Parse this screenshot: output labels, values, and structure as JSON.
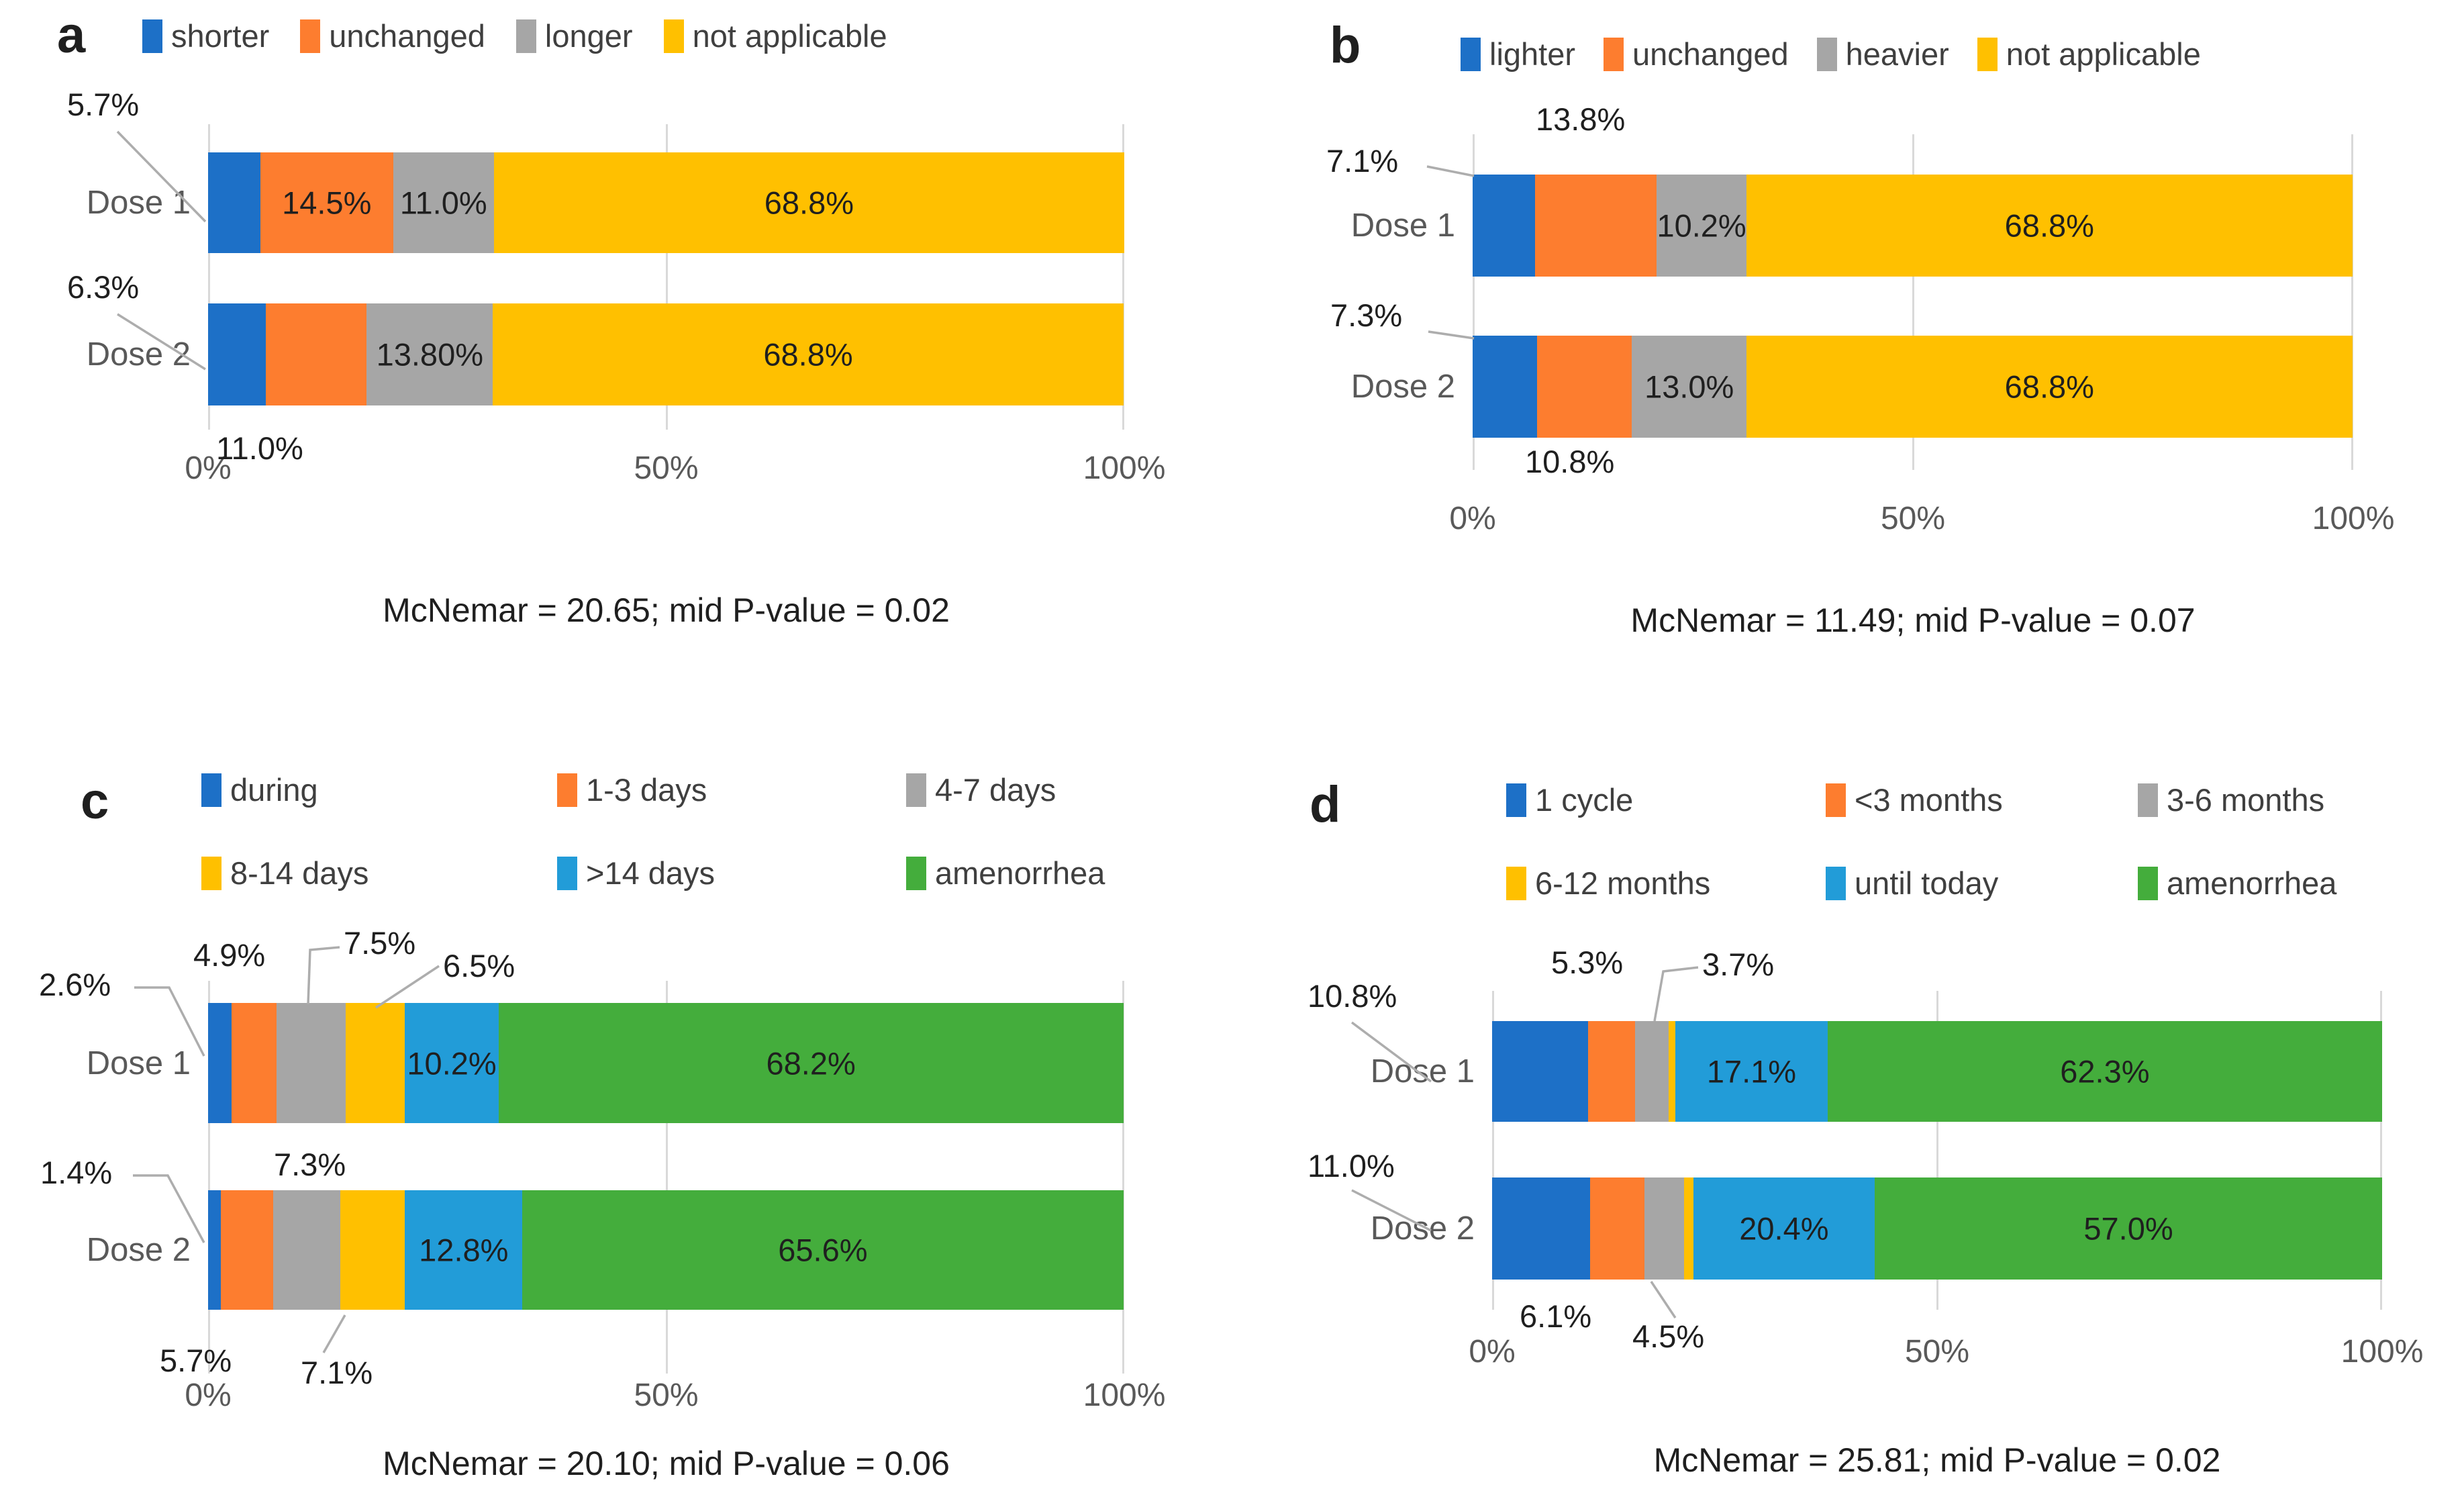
{
  "colors": {
    "blue": "#1d70c7",
    "orange": "#fd7d2f",
    "gray": "#a6a6a6",
    "yellow": "#ffc000",
    "lightblue": "#229cd8",
    "green": "#44ad3c",
    "gridline": "#d9d9d9",
    "leader_line": "#adadad",
    "axis_text": "#595959"
  },
  "figure": {
    "panels": {
      "a": {
        "letter": "a",
        "legend": [
          "shorter",
          "unchanged",
          "longer",
          "not applicable"
        ],
        "rows": [
          {
            "label": "Dose 1",
            "values": [
              5.7,
              14.5,
              11.0,
              68.8
            ],
            "seg_labels": [
              "",
              "14.5%",
              "11.0%",
              "68.8%"
            ]
          },
          {
            "label": "Dose 2",
            "values": [
              6.3,
              11.0,
              13.8,
              68.8
            ],
            "seg_labels": [
              "",
              "",
              "13.80%",
              "68.8%"
            ]
          }
        ],
        "callouts": [
          "5.7%",
          "6.3%",
          "11.0%"
        ],
        "axis_ticks": [
          "0%",
          "50%",
          "100%"
        ],
        "caption": "McNemar = 20.65; mid P-value = 0.02"
      },
      "b": {
        "letter": "b",
        "legend": [
          "lighter",
          "unchanged",
          "heavier",
          "not applicable"
        ],
        "rows": [
          {
            "label": "Dose 1",
            "values": [
              7.1,
              13.8,
              10.2,
              68.8
            ],
            "seg_labels": [
              "",
              "",
              "10.2%",
              "68.8%"
            ]
          },
          {
            "label": "Dose 2",
            "values": [
              7.3,
              10.8,
              13.0,
              68.8
            ],
            "seg_labels": [
              "",
              "",
              "13.0%",
              "68.8%"
            ]
          }
        ],
        "callouts": [
          "13.8%",
          "7.1%",
          "7.3%",
          "10.8%"
        ],
        "axis_ticks": [
          "0%",
          "50%",
          "100%"
        ],
        "caption": "McNemar = 11.49; mid P-value = 0.07"
      },
      "c": {
        "letter": "c",
        "legend": [
          "during",
          "1-3 days",
          "4-7 days",
          "8-14 days",
          ">14 days",
          "amenorrhea"
        ],
        "rows": [
          {
            "label": "Dose 1",
            "values": [
              2.6,
              4.9,
              7.5,
              6.5,
              10.2,
              68.2
            ],
            "seg_labels": [
              "",
              "",
              "",
              "",
              "10.2%",
              "68.2%"
            ]
          },
          {
            "label": "Dose 2",
            "values": [
              1.4,
              5.7,
              7.3,
              7.1,
              12.8,
              65.6
            ],
            "seg_labels": [
              "",
              "",
              "",
              "",
              "12.8%",
              "65.6%"
            ]
          }
        ],
        "callouts": [
          "2.6%",
          "4.9%",
          "7.5%",
          "6.5%",
          "1.4%",
          "7.3%",
          "5.7%",
          "7.1%"
        ],
        "axis_ticks": [
          "0%",
          "50%",
          "100%"
        ],
        "caption": "McNemar = 20.10; mid P-value = 0.06"
      },
      "d": {
        "letter": "d",
        "legend": [
          "1 cycle",
          "<3 months",
          "3-6 months",
          "6-12 months",
          "until today",
          "amenorrhea"
        ],
        "rows": [
          {
            "label": "Dose 1",
            "values": [
              10.8,
              5.3,
              3.7,
              0.8,
              17.1,
              62.3
            ],
            "seg_labels": [
              "",
              "",
              "",
              "",
              "17.1%",
              "62.3%"
            ]
          },
          {
            "label": "Dose 2",
            "values": [
              11.0,
              6.1,
              4.5,
              1.0,
              20.4,
              57.0
            ],
            "seg_labels": [
              "",
              "",
              "",
              "",
              "20.4%",
              "57.0%"
            ]
          }
        ],
        "callouts": [
          "10.8%",
          "5.3%",
          "3.7%",
          "11.0%",
          "6.1%",
          "4.5%"
        ],
        "axis_ticks": [
          "0%",
          "50%",
          "100%"
        ],
        "caption": "McNemar = 25.81; mid P-value = 0.02"
      }
    }
  },
  "chart_data": [
    {
      "panel": "a",
      "type": "bar",
      "stacked": true,
      "orientation": "horizontal",
      "categories": [
        "Dose 1",
        "Dose 2"
      ],
      "series": [
        {
          "name": "shorter",
          "color": "#1d70c7",
          "values": [
            5.7,
            6.3
          ]
        },
        {
          "name": "unchanged",
          "color": "#fd7d2f",
          "values": [
            14.5,
            11.0
          ]
        },
        {
          "name": "longer",
          "color": "#a6a6a6",
          "values": [
            11.0,
            13.8
          ]
        },
        {
          "name": "not applicable",
          "color": "#ffc000",
          "values": [
            68.8,
            68.8
          ]
        }
      ],
      "data_labels": {
        "Dose 1": [
          "5.7%",
          "14.5%",
          "11.0%",
          "68.8%"
        ],
        "Dose 2": [
          "6.3%",
          "11.0%",
          "13.80%",
          "68.8%"
        ]
      },
      "xlim": [
        0,
        100
      ],
      "x_ticks": [
        "0%",
        "50%",
        "100%"
      ],
      "legend_position": "top",
      "grid": true,
      "annotation": "McNemar = 20.65; mid P-value = 0.02"
    },
    {
      "panel": "b",
      "type": "bar",
      "stacked": true,
      "orientation": "horizontal",
      "categories": [
        "Dose 1",
        "Dose 2"
      ],
      "series": [
        {
          "name": "lighter",
          "color": "#1d70c7",
          "values": [
            7.1,
            7.3
          ]
        },
        {
          "name": "unchanged",
          "color": "#fd7d2f",
          "values": [
            13.8,
            10.8
          ]
        },
        {
          "name": "heavier",
          "color": "#a6a6a6",
          "values": [
            10.2,
            13.0
          ]
        },
        {
          "name": "not applicable",
          "color": "#ffc000",
          "values": [
            68.8,
            68.8
          ]
        }
      ],
      "data_labels": {
        "Dose 1": [
          "7.1%",
          "13.8%",
          "10.2%",
          "68.8%"
        ],
        "Dose 2": [
          "7.3%",
          "10.8%",
          "13.0%",
          "68.8%"
        ]
      },
      "xlim": [
        0,
        100
      ],
      "x_ticks": [
        "0%",
        "50%",
        "100%"
      ],
      "legend_position": "top",
      "grid": true,
      "annotation": "McNemar = 11.49; mid P-value = 0.07"
    },
    {
      "panel": "c",
      "type": "bar",
      "stacked": true,
      "orientation": "horizontal",
      "categories": [
        "Dose 1",
        "Dose 2"
      ],
      "series": [
        {
          "name": "during",
          "color": "#1d70c7",
          "values": [
            2.6,
            1.4
          ]
        },
        {
          "name": "1-3 days",
          "color": "#fd7d2f",
          "values": [
            4.9,
            5.7
          ]
        },
        {
          "name": "4-7 days",
          "color": "#a6a6a6",
          "values": [
            7.5,
            7.3
          ]
        },
        {
          "name": "8-14 days",
          "color": "#ffc000",
          "values": [
            6.5,
            7.1
          ]
        },
        {
          "name": ">14 days",
          "color": "#229cd8",
          "values": [
            10.2,
            12.8
          ]
        },
        {
          "name": "amenorrhea",
          "color": "#44ad3c",
          "values": [
            68.2,
            65.6
          ]
        }
      ],
      "data_labels": {
        "Dose 1": [
          "2.6%",
          "4.9%",
          "7.5%",
          "6.5%",
          "10.2%",
          "68.2%"
        ],
        "Dose 2": [
          "1.4%",
          "5.7%",
          "7.3%",
          "7.1%",
          "12.8%",
          "65.6%"
        ]
      },
      "xlim": [
        0,
        100
      ],
      "x_ticks": [
        "0%",
        "50%",
        "100%"
      ],
      "legend_position": "top",
      "grid": true,
      "annotation": "McNemar = 20.10; mid P-value = 0.06"
    },
    {
      "panel": "d",
      "type": "bar",
      "stacked": true,
      "orientation": "horizontal",
      "categories": [
        "Dose 1",
        "Dose 2"
      ],
      "series": [
        {
          "name": "1 cycle",
          "color": "#1d70c7",
          "values": [
            10.8,
            11.0
          ]
        },
        {
          "name": "<3 months",
          "color": "#fd7d2f",
          "values": [
            5.3,
            6.1
          ]
        },
        {
          "name": "3-6 months",
          "color": "#a6a6a6",
          "values": [
            3.7,
            4.5
          ]
        },
        {
          "name": "6-12 months",
          "color": "#ffc000",
          "values": [
            0.8,
            1.0
          ]
        },
        {
          "name": "until today",
          "color": "#229cd8",
          "values": [
            17.1,
            20.4
          ]
        },
        {
          "name": "amenorrhea",
          "color": "#44ad3c",
          "values": [
            62.3,
            57.0
          ]
        }
      ],
      "data_labels": {
        "Dose 1": [
          "10.8%",
          "5.3%",
          "3.7%",
          "",
          "17.1%",
          "62.3%"
        ],
        "Dose 2": [
          "11.0%",
          "6.1%",
          "4.5%",
          "",
          "20.4%",
          "57.0%"
        ]
      },
      "xlim": [
        0,
        100
      ],
      "x_ticks": [
        "0%",
        "50%",
        "100%"
      ],
      "legend_position": "top",
      "grid": true,
      "annotation": "McNemar = 25.81; mid P-value = 0.02"
    }
  ]
}
